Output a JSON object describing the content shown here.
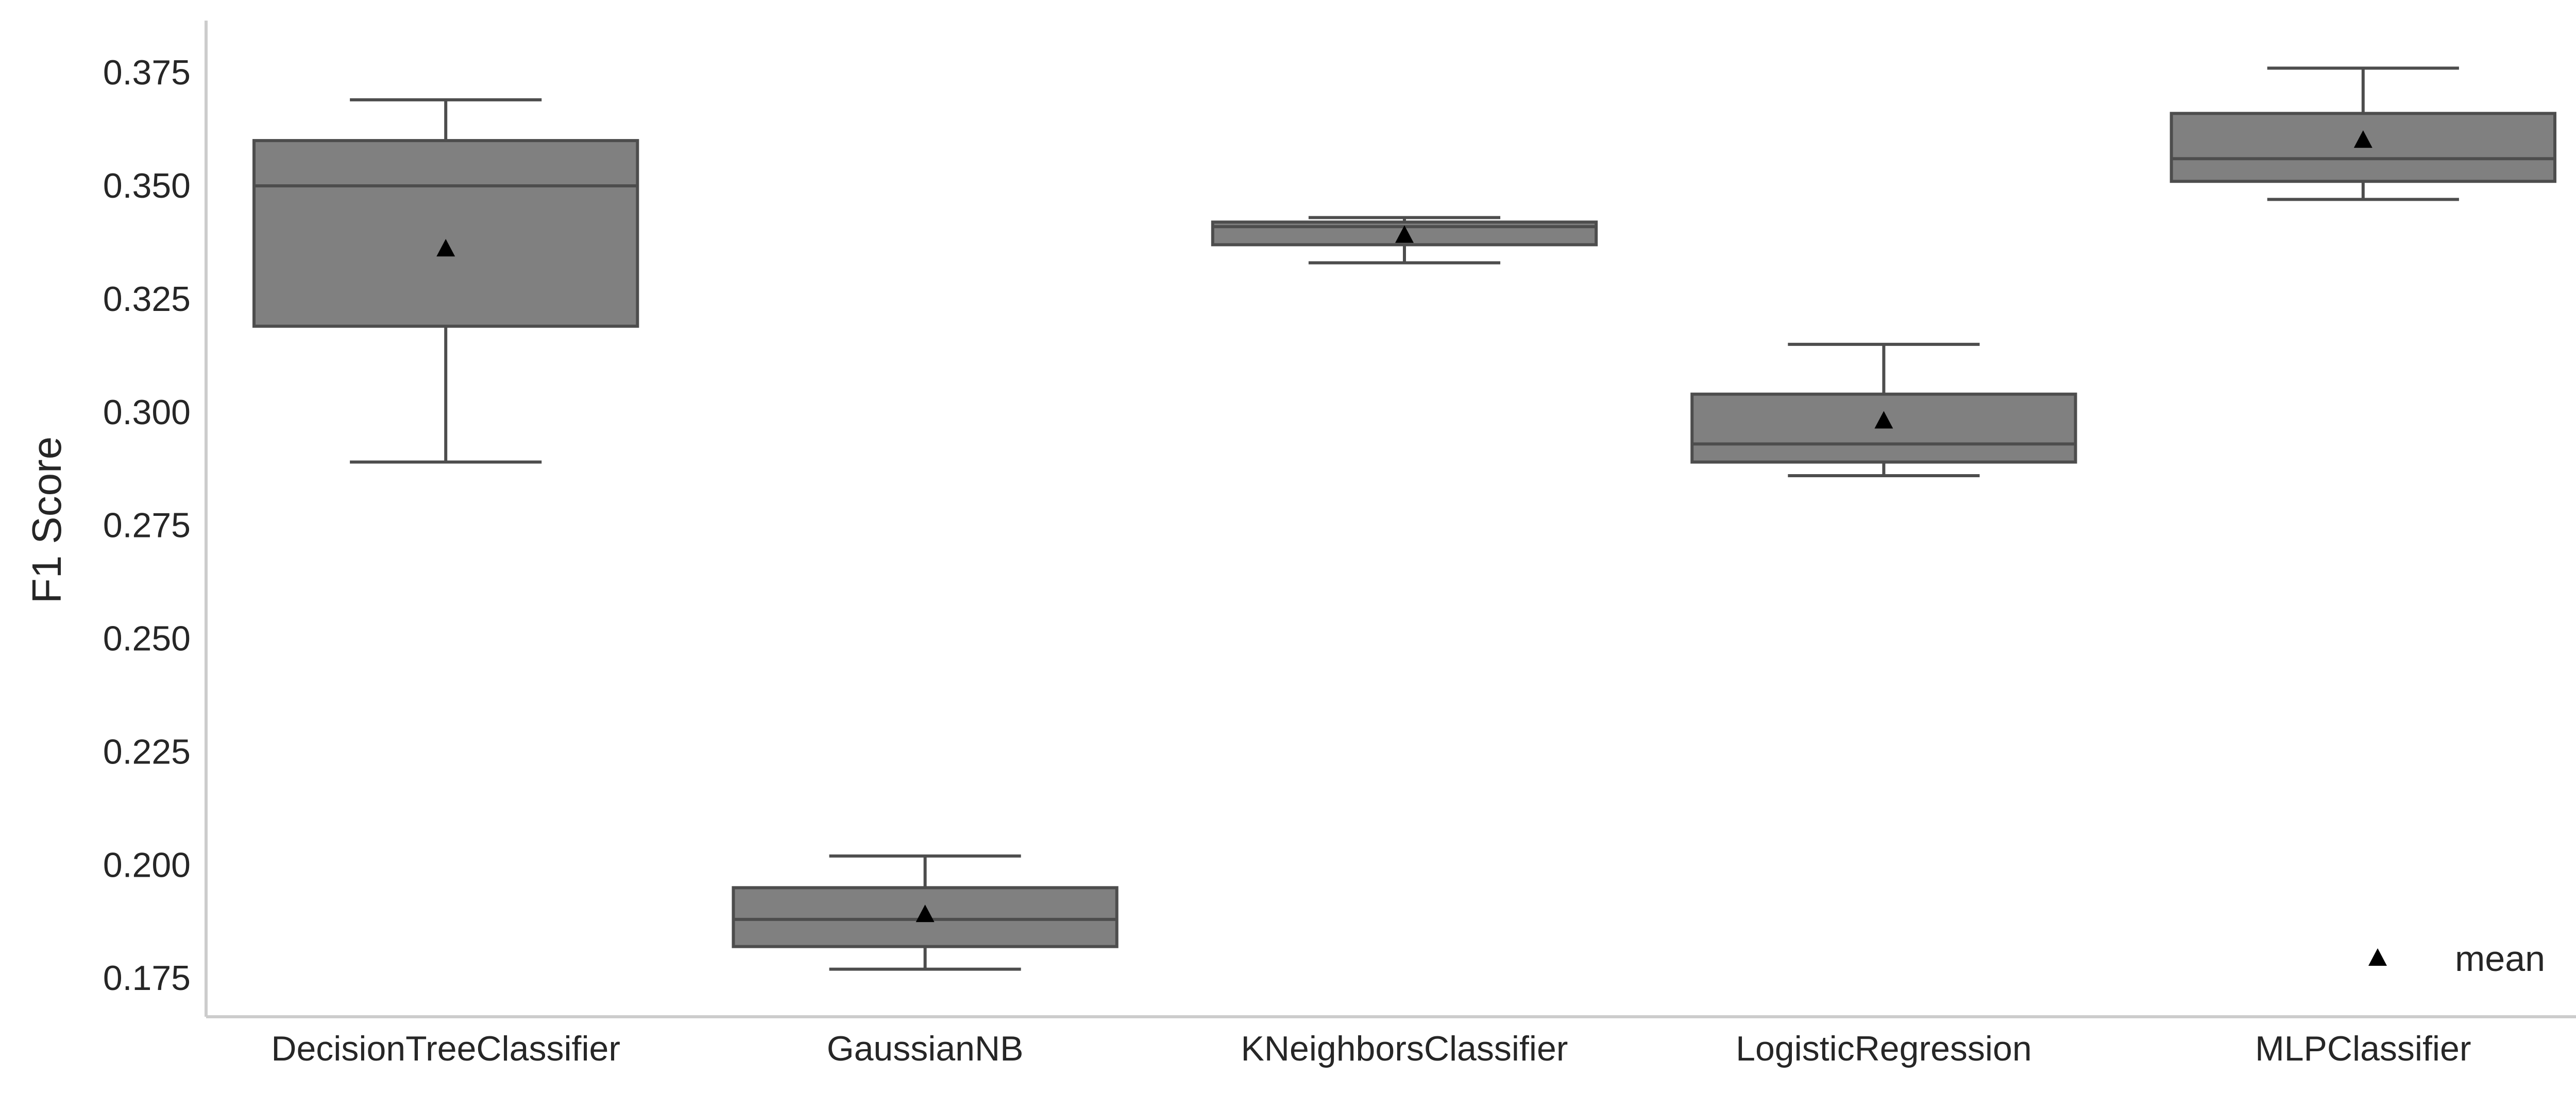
{
  "chart_data": {
    "type": "box",
    "title": "",
    "xlabel": "",
    "ylabel": "F1 Score",
    "ylim": [
      0.1665,
      0.3865
    ],
    "yticks": [
      "0.175",
      "0.200",
      "0.225",
      "0.250",
      "0.275",
      "0.300",
      "0.325",
      "0.350",
      "0.375"
    ],
    "grid": false,
    "legend": {
      "position": "bottom-right",
      "entries": [
        {
          "label": "mean",
          "marker": "triangle"
        }
      ]
    },
    "colors": {
      "box_fill": "#808080",
      "box_edge": "#4d4d4d",
      "mean_marker": "#000000",
      "axis": "#cccccc"
    },
    "categories": [
      "DecisionTreeClassifier",
      "GaussianNB",
      "KNeighborsClassifier",
      "LogisticRegression",
      "MLPClassifier"
    ],
    "boxes": [
      {
        "name": "DecisionTreeClassifier",
        "whisker_low": 0.289,
        "q1": 0.319,
        "median": 0.35,
        "q3": 0.36,
        "whisker_high": 0.369,
        "mean": 0.336
      },
      {
        "name": "GaussianNB",
        "whisker_low": 0.177,
        "q1": 0.182,
        "median": 0.188,
        "q3": 0.195,
        "whisker_high": 0.202,
        "mean": 0.189
      },
      {
        "name": "KNeighborsClassifier",
        "whisker_low": 0.333,
        "q1": 0.337,
        "median": 0.341,
        "q3": 0.342,
        "whisker_high": 0.343,
        "mean": 0.339
      },
      {
        "name": "LogisticRegression",
        "whisker_low": 0.286,
        "q1": 0.289,
        "median": 0.293,
        "q3": 0.304,
        "whisker_high": 0.315,
        "mean": 0.298
      },
      {
        "name": "MLPClassifier",
        "whisker_low": 0.347,
        "q1": 0.351,
        "median": 0.356,
        "q3": 0.366,
        "whisker_high": 0.376,
        "mean": 0.36
      }
    ]
  }
}
